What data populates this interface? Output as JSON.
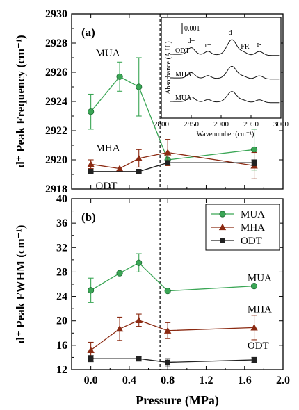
{
  "chart_data": [
    {
      "panel": "(a)",
      "type": "line",
      "ylabel": "d⁺ Peak Frequency (cm⁻¹)",
      "xlim": [
        -0.2,
        2.0
      ],
      "ylim": [
        2918,
        2930
      ],
      "xticks": [
        0.0,
        0.4,
        0.8,
        1.2,
        1.6,
        2.0
      ],
      "yticks": [
        2918,
        2920,
        2922,
        2924,
        2926,
        2928,
        2930
      ],
      "ytick_labels": [
        "2918",
        "2920",
        "2922",
        "2924",
        "2926",
        "2928",
        "2930"
      ],
      "x": [
        0.0,
        0.3,
        0.5,
        0.8,
        1.7
      ],
      "series": [
        {
          "name": "MUA",
          "color": "#3aa655",
          "marker": "circle",
          "values": [
            2923.3,
            2925.7,
            2925.0,
            2920.0,
            2920.7
          ],
          "err": [
            1.2,
            1.0,
            2.0,
            0.4,
            1.4
          ]
        },
        {
          "name": "MHA",
          "color": "#8b2a12",
          "marker": "triangle",
          "values": [
            2919.7,
            2919.4,
            2920.1,
            2920.5,
            2919.6
          ],
          "err": [
            0.3,
            0.0,
            0.6,
            0.9,
            0.9
          ]
        },
        {
          "name": "ODT",
          "color": "#222222",
          "marker": "square",
          "values": [
            2919.2,
            null,
            2919.2,
            2919.8,
            2919.8
          ],
          "err": [
            0.1,
            0,
            0.1,
            0.1,
            0.2
          ]
        }
      ],
      "annotations": [
        {
          "text": "MUA",
          "x": 0.05,
          "y": 2927.1
        },
        {
          "text": "MHA",
          "x": 0.05,
          "y": 2920.6
        },
        {
          "text": "ODT",
          "x": 0.05,
          "y": 2918.0
        }
      ],
      "vline_x": 0.72,
      "inset": {
        "xlabel": "Wavenumber (cm⁻¹)",
        "ylabel": "Absorbance (A.U.)",
        "xticks": [
          2800,
          2850,
          2900,
          2950,
          3000
        ],
        "xlim": [
          2800,
          3000
        ],
        "scale_label": "0.001",
        "traces": [
          "ODT",
          "MHA",
          "MUA"
        ],
        "peak_labels": [
          {
            "text": "d+",
            "x": 2850
          },
          {
            "text": "r+",
            "x": 2878
          },
          {
            "text": "d-",
            "x": 2917
          },
          {
            "text": "FR",
            "x": 2940
          },
          {
            "text": "r-",
            "x": 2964
          }
        ]
      }
    },
    {
      "panel": "(b)",
      "type": "line",
      "ylabel": "d⁺ Peak FWHM (cm⁻¹)",
      "xlabel": "Pressure (MPa)",
      "xlim": [
        -0.2,
        2.0
      ],
      "ylim": [
        12,
        40
      ],
      "xticks": [
        0.0,
        0.4,
        0.8,
        1.2,
        1.6,
        2.0
      ],
      "xtick_labels": [
        "0.0",
        "0.4",
        "0.8",
        "1.2",
        "1.6",
        "2.0"
      ],
      "yticks": [
        12,
        16,
        20,
        24,
        28,
        32,
        36,
        40
      ],
      "ytick_labels": [
        "12",
        "16",
        "20",
        "24",
        "28",
        "32",
        "36",
        "40"
      ],
      "x": [
        0.0,
        0.3,
        0.5,
        0.8,
        1.7
      ],
      "series": [
        {
          "name": "MUA",
          "color": "#3aa655",
          "marker": "circle",
          "values": [
            25.0,
            27.8,
            29.5,
            24.9,
            25.7
          ],
          "err": [
            2.0,
            0.2,
            1.5,
            0.1,
            0.1
          ]
        },
        {
          "name": "MHA",
          "color": "#8b2a12",
          "marker": "triangle",
          "values": [
            15.2,
            18.7,
            20.1,
            18.4,
            18.9
          ],
          "err": [
            1.3,
            1.9,
            1.0,
            1.3,
            2.0
          ]
        },
        {
          "name": "ODT",
          "color": "#222222",
          "marker": "square",
          "values": [
            13.8,
            null,
            13.8,
            13.2,
            13.6
          ],
          "err": [
            0.5,
            0,
            0.4,
            0.6,
            0.4
          ]
        }
      ],
      "annotations": [
        {
          "text": "MUA",
          "x": 1.63,
          "y": 26.5
        },
        {
          "text": "MHA",
          "x": 1.63,
          "y": 21.4
        },
        {
          "text": "ODT",
          "x": 1.63,
          "y": 15.4
        }
      ],
      "legend": {
        "placement": "top-right",
        "entries": [
          "MUA",
          "MHA",
          "ODT"
        ]
      },
      "vline_x": 0.72
    }
  ]
}
